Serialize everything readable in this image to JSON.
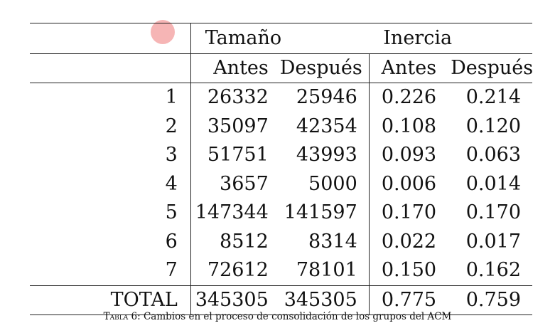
{
  "table": {
    "group_headers": [
      "Tamaño",
      "Inercia"
    ],
    "sub_headers": [
      "Antes",
      "Después",
      "Antes",
      "Después"
    ],
    "rows": [
      {
        "label": "1",
        "cells": [
          "26332",
          "25946",
          "0.226",
          "0.214"
        ]
      },
      {
        "label": "2",
        "cells": [
          "35097",
          "42354",
          "0.108",
          "0.120"
        ]
      },
      {
        "label": "3",
        "cells": [
          "51751",
          "43993",
          "0.093",
          "0.063"
        ]
      },
      {
        "label": "4",
        "cells": [
          "3657",
          "5000",
          "0.006",
          "0.014"
        ]
      },
      {
        "label": "5",
        "cells": [
          "147344",
          "141597",
          "0.170",
          "0.170"
        ]
      },
      {
        "label": "6",
        "cells": [
          "8512",
          "8314",
          "0.022",
          "0.017"
        ]
      },
      {
        "label": "7",
        "cells": [
          "72612",
          "78101",
          "0.150",
          "0.162"
        ]
      }
    ],
    "total": {
      "label": "TOTAL",
      "cells": [
        "345305",
        "345305",
        "0.775",
        "0.759"
      ]
    }
  },
  "caption": {
    "label": "Tabla 6:",
    "text": "Cambios en el proceso de consolidación de los grupos del ACM"
  },
  "colors": {
    "cursor_highlight": "#eb5a5a"
  }
}
